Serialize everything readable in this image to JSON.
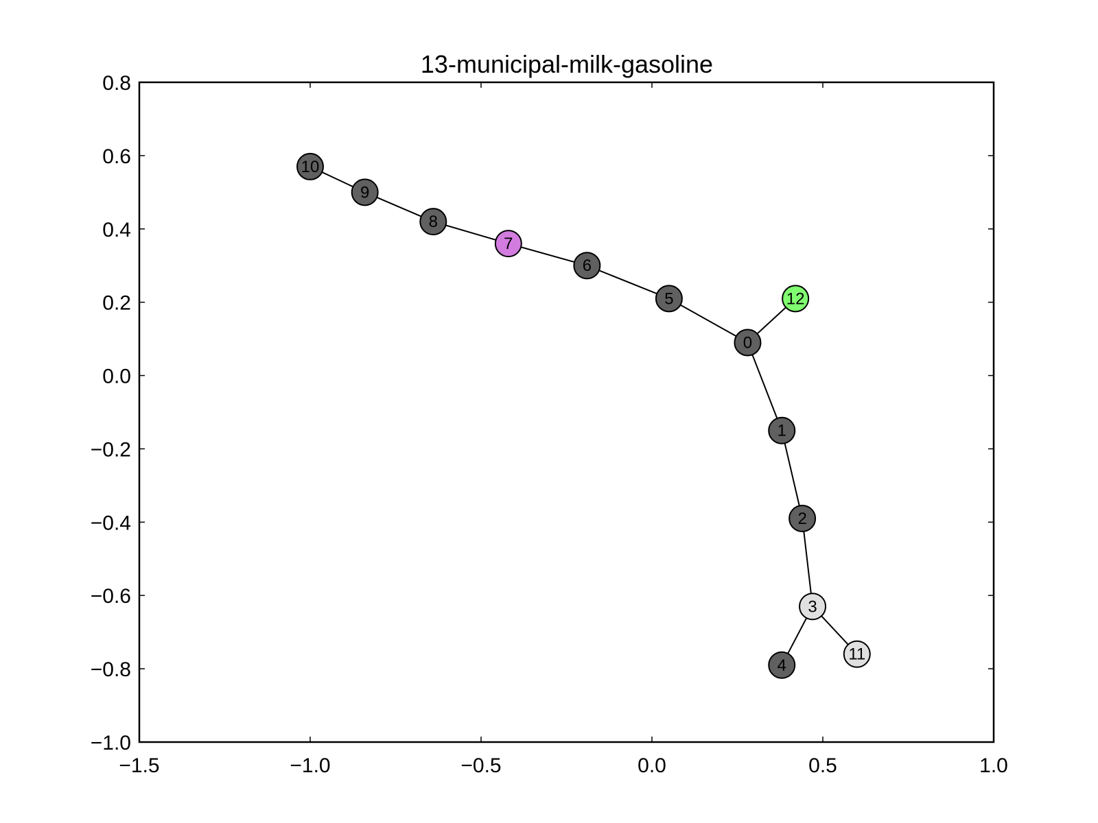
{
  "chart_data": {
    "type": "network",
    "title": "13-municipal-milk-gasoline",
    "xlabel": "",
    "ylabel": "",
    "xlim": [
      -1.5,
      1.0
    ],
    "ylim": [
      -1.0,
      0.8
    ],
    "x_ticks": [
      -1.5,
      -1.0,
      -0.5,
      0.0,
      0.5,
      1.0
    ],
    "x_tick_labels": [
      "−1.5",
      "−1.0",
      "−0.5",
      "0.0",
      "0.5",
      "1.0"
    ],
    "y_ticks": [
      0.8,
      0.6,
      0.4,
      0.2,
      0.0,
      -0.2,
      -0.4,
      -0.6,
      -0.8,
      -1.0
    ],
    "y_tick_labels": [
      "0.8",
      "0.6",
      "0.4",
      "0.2",
      "0.0",
      "−0.2",
      "−0.4",
      "−0.6",
      "−0.8",
      "−1.0"
    ],
    "grid": false,
    "nodes": [
      {
        "id": "0",
        "x": 0.28,
        "y": 0.09,
        "color": "#606060"
      },
      {
        "id": "1",
        "x": 0.38,
        "y": -0.15,
        "color": "#606060"
      },
      {
        "id": "2",
        "x": 0.44,
        "y": -0.39,
        "color": "#606060"
      },
      {
        "id": "3",
        "x": 0.47,
        "y": -0.63,
        "color": "#e0e0e0"
      },
      {
        "id": "4",
        "x": 0.38,
        "y": -0.79,
        "color": "#606060"
      },
      {
        "id": "5",
        "x": 0.05,
        "y": 0.21,
        "color": "#606060"
      },
      {
        "id": "6",
        "x": -0.19,
        "y": 0.3,
        "color": "#606060"
      },
      {
        "id": "7",
        "x": -0.42,
        "y": 0.36,
        "color": "#d27ce0"
      },
      {
        "id": "8",
        "x": -0.64,
        "y": 0.42,
        "color": "#606060"
      },
      {
        "id": "9",
        "x": -0.84,
        "y": 0.5,
        "color": "#606060"
      },
      {
        "id": "10",
        "x": -1.0,
        "y": 0.57,
        "color": "#606060"
      },
      {
        "id": "11",
        "x": 0.6,
        "y": -0.76,
        "color": "#e0e0e0"
      },
      {
        "id": "12",
        "x": 0.42,
        "y": 0.21,
        "color": "#80ff70"
      }
    ],
    "edges": [
      [
        "10",
        "9"
      ],
      [
        "9",
        "8"
      ],
      [
        "8",
        "7"
      ],
      [
        "7",
        "6"
      ],
      [
        "6",
        "5"
      ],
      [
        "5",
        "0"
      ],
      [
        "0",
        "12"
      ],
      [
        "0",
        "1"
      ],
      [
        "1",
        "2"
      ],
      [
        "2",
        "3"
      ],
      [
        "3",
        "4"
      ],
      [
        "3",
        "11"
      ]
    ]
  }
}
